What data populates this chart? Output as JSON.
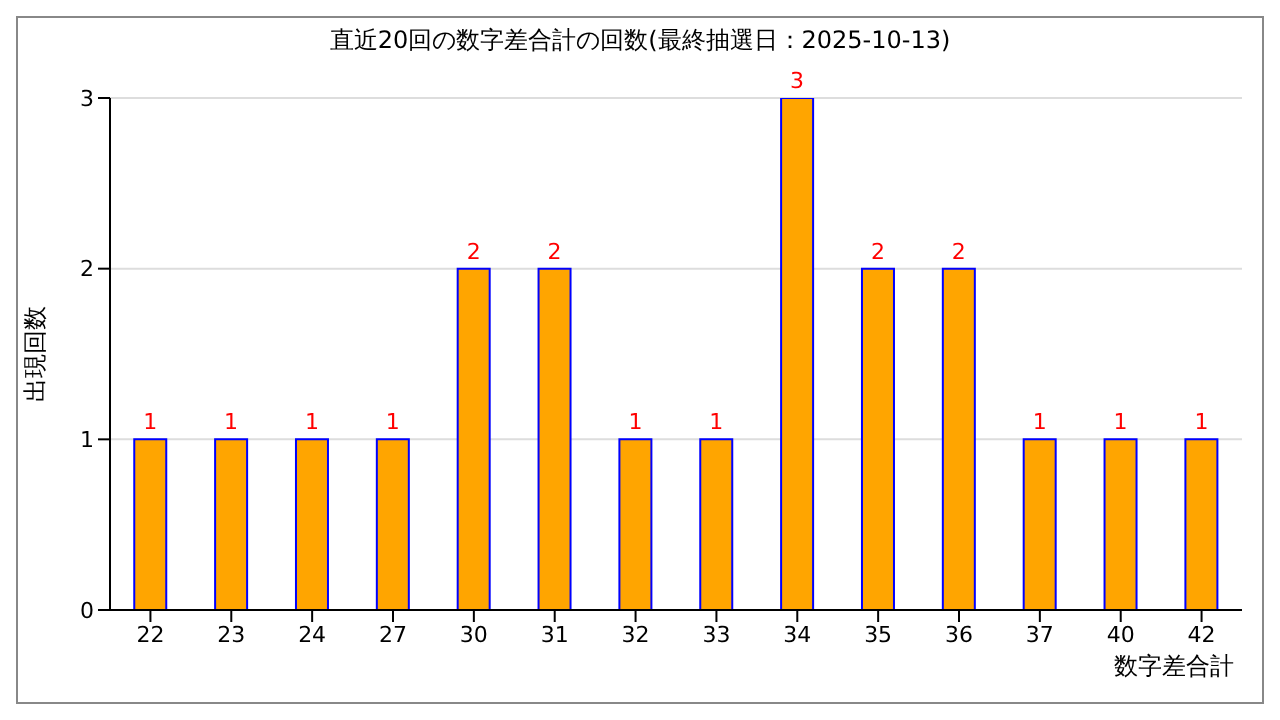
{
  "chart_data": {
    "type": "bar",
    "title": "直近20回の数字差合計の回数(最終抽選日：2025-10-13)",
    "xlabel": "数字差合計",
    "ylabel": "出現回数",
    "categories": [
      "22",
      "23",
      "24",
      "27",
      "30",
      "31",
      "32",
      "33",
      "34",
      "35",
      "36",
      "37",
      "40",
      "42"
    ],
    "values": [
      1,
      1,
      1,
      1,
      2,
      2,
      1,
      1,
      3,
      2,
      2,
      1,
      1,
      1
    ],
    "color": "#ffa500",
    "ylim": [
      0,
      3
    ],
    "yticks": [
      0,
      1,
      2,
      3
    ],
    "grid": "y",
    "data_labels": true
  }
}
